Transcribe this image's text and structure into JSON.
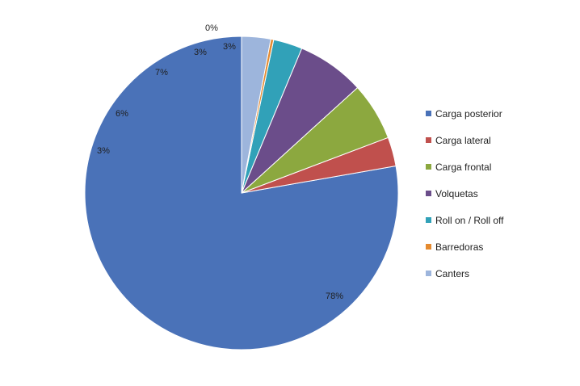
{
  "chart_data": {
    "type": "pie",
    "title": "",
    "slices": [
      {
        "label": "Carga posterior",
        "value": 78,
        "data_label": "78%",
        "color": "#4a72b8"
      },
      {
        "label": "Carga lateral",
        "value": 3,
        "data_label": "3%",
        "color": "#c0504d"
      },
      {
        "label": "Carga frontal",
        "value": 6,
        "data_label": "6%",
        "color": "#8ca83f"
      },
      {
        "label": "Volquetas",
        "value": 7,
        "data_label": "7%",
        "color": "#6b4d8a"
      },
      {
        "label": "Roll on / Roll off",
        "value": 3,
        "data_label": "3%",
        "color": "#31a1b8"
      },
      {
        "label": "Barredoras",
        "value": 0.3,
        "data_label": "0%",
        "color": "#e58a2f"
      },
      {
        "label": "Canters",
        "value": 3,
        "data_label": "3%",
        "color": "#9db5dc"
      }
    ],
    "start_angle": "12 o'clock",
    "direction": "counter-clockwise",
    "legend_position": "right"
  }
}
